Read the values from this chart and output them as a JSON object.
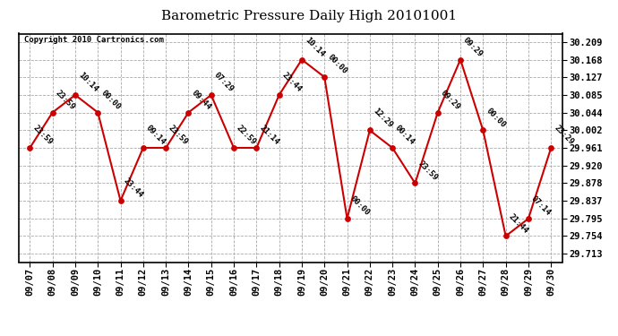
{
  "title": "Barometric Pressure Daily High 20101001",
  "copyright": "Copyright 2010 Cartronics.com",
  "x_labels": [
    "09/07",
    "09/08",
    "09/09",
    "09/10",
    "09/11",
    "09/12",
    "09/13",
    "09/14",
    "09/15",
    "09/16",
    "09/17",
    "09/18",
    "09/19",
    "09/20",
    "09/21",
    "09/22",
    "09/23",
    "09/24",
    "09/25",
    "09/26",
    "09/27",
    "09/28",
    "09/29",
    "09/30"
  ],
  "y_values": [
    29.961,
    30.044,
    30.085,
    30.044,
    29.837,
    29.961,
    29.961,
    30.044,
    30.085,
    29.961,
    29.961,
    30.085,
    30.168,
    30.127,
    29.795,
    30.002,
    29.961,
    29.878,
    30.044,
    30.168,
    30.002,
    29.754,
    29.795,
    29.961
  ],
  "point_labels": [
    "23:59",
    "23:59",
    "10:14",
    "00:00",
    "23:44",
    "09:14",
    "23:59",
    "09:44",
    "07:29",
    "22:59",
    "21:14",
    "23:44",
    "10:14",
    "00:00",
    "00:00",
    "12:29",
    "00:14",
    "23:59",
    "09:29",
    "09:29",
    "00:00",
    "21:44",
    "07:14",
    "23:29"
  ],
  "y_ticks": [
    29.713,
    29.754,
    29.795,
    29.837,
    29.878,
    29.92,
    29.961,
    30.002,
    30.044,
    30.085,
    30.127,
    30.168,
    30.209
  ],
  "ylim": [
    29.693,
    30.229
  ],
  "line_color": "#cc0000",
  "marker_color": "#cc0000",
  "bg_color": "#ffffff",
  "grid_color": "#aaaaaa",
  "title_fontsize": 11,
  "copyright_fontsize": 6.5,
  "label_fontsize": 6.5,
  "tick_fontsize": 7.5
}
